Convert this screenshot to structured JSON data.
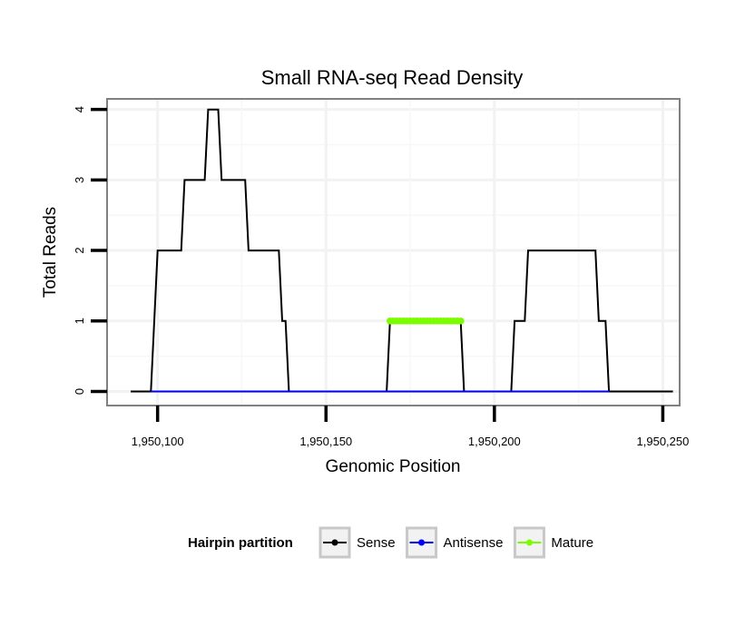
{
  "chart_data": {
    "type": "line",
    "title": "Small RNA-seq Read Density",
    "xlabel": "Genomic Position",
    "ylabel": "Total Reads",
    "xlim": [
      1950085,
      1950255
    ],
    "ylim": [
      -0.2,
      4.15
    ],
    "x_ticks": [
      1950100,
      1950150,
      1950200,
      1950250
    ],
    "x_tick_labels": [
      "1,950,100",
      "1,950,150",
      "1,950,200",
      "1,950,250"
    ],
    "y_ticks": [
      0,
      1,
      2,
      3,
      4
    ],
    "y_tick_labels": [
      "0",
      "1",
      "2",
      "3",
      "4"
    ],
    "grid": true,
    "legend": {
      "title": "Hairpin partition",
      "position": "bottom",
      "entries": [
        {
          "name": "Sense",
          "color": "#000000"
        },
        {
          "name": "Antisense",
          "color": "#0000ff"
        },
        {
          "name": "Mature",
          "color": "#7cfc00"
        }
      ]
    },
    "series": [
      {
        "name": "Sense",
        "color": "#000000",
        "points": [
          [
            1950092,
            0
          ],
          [
            1950098,
            0
          ],
          [
            1950100,
            2
          ],
          [
            1950107,
            2
          ],
          [
            1950108,
            3
          ],
          [
            1950114,
            3
          ],
          [
            1950115,
            4
          ],
          [
            1950118,
            4
          ],
          [
            1950119,
            3
          ],
          [
            1950126,
            3
          ],
          [
            1950127,
            2
          ],
          [
            1950136,
            2
          ],
          [
            1950137,
            1
          ],
          [
            1950138,
            1
          ],
          [
            1950139,
            0
          ],
          [
            1950168,
            0
          ],
          [
            1950169,
            1
          ],
          [
            1950190,
            1
          ],
          [
            1950191,
            0
          ],
          [
            1950205,
            0
          ],
          [
            1950206,
            1
          ],
          [
            1950209,
            1
          ],
          [
            1950210,
            2
          ],
          [
            1950230,
            2
          ],
          [
            1950231,
            1
          ],
          [
            1950233,
            1
          ],
          [
            1950234,
            0
          ],
          [
            1950253,
            0
          ]
        ]
      },
      {
        "name": "Antisense",
        "color": "#0000ff",
        "points": [
          [
            1950098,
            0
          ],
          [
            1950234,
            0
          ]
        ]
      },
      {
        "name": "Mature",
        "color": "#7cfc00",
        "points": [
          [
            1950169,
            1
          ],
          [
            1950190,
            1
          ]
        ],
        "markers": true
      }
    ]
  }
}
